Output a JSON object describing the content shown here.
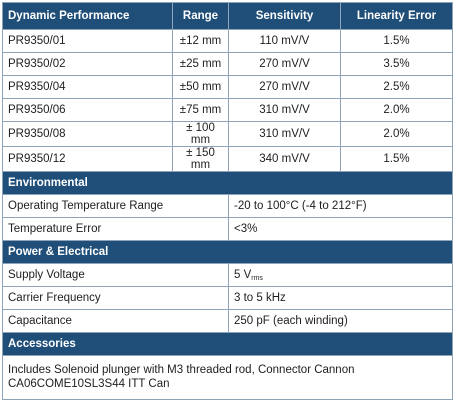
{
  "header": {
    "col1": "Dynamic Performance",
    "col2": "Range",
    "col3": "Sensitivity",
    "col4": "Linearity Error"
  },
  "performance_rows": [
    {
      "model": "PR9350/01",
      "range": "±12 mm",
      "sensitivity": "110 mV/V",
      "linearity": "1.5%"
    },
    {
      "model": "PR9350/02",
      "range": "±25 mm",
      "sensitivity": "270 mV/V",
      "linearity": "3.5%"
    },
    {
      "model": "PR9350/04",
      "range": "±50 mm",
      "sensitivity": "270 mV/V",
      "linearity": "2.5%"
    },
    {
      "model": "PR9350/06",
      "range": "±75 mm",
      "sensitivity": "310 mV/V",
      "linearity": "2.0%"
    },
    {
      "model": "PR9350/08",
      "range": "± 100 mm",
      "sensitivity": "310 mV/V",
      "linearity": "2.0%"
    },
    {
      "model": "PR9350/12",
      "range": "± 150 mm",
      "sensitivity": "340 mV/V",
      "linearity": "1.5%"
    }
  ],
  "environmental": {
    "title": "Environmental",
    "rows": [
      {
        "label": "Operating Temperature Range",
        "value": "-20 to 100°C (-4 to 212°F)"
      },
      {
        "label": "Temperature Error",
        "value": "<3%"
      }
    ]
  },
  "power": {
    "title": "Power & Electrical",
    "supply_label": "Supply Voltage",
    "supply_value": "5 V",
    "supply_unit_sub": "rms",
    "rows": [
      {
        "label": "Carrier Frequency",
        "value": "3 to 5 kHz"
      },
      {
        "label": "Capacitance",
        "value": "250 pF (each winding)"
      }
    ]
  },
  "accessories": {
    "title": "Accessories",
    "text": "Includes Solenoid plunger with M3 threaded rod, Connector Cannon CA06COME10SL3S44 ITT Can"
  }
}
